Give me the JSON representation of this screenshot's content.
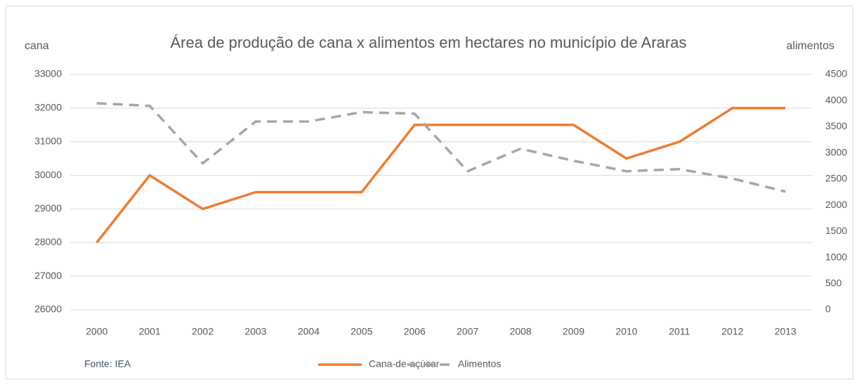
{
  "chart_data": {
    "type": "line",
    "title": "Área de produção de cana x alimentos em hectares no município de Araras",
    "ylabel": "cana",
    "y2label": "alimentos",
    "source": "Fonte: IEA",
    "categories": [
      "2000",
      "2001",
      "2002",
      "2003",
      "2004",
      "2005",
      "2006",
      "2007",
      "2008",
      "2009",
      "2010",
      "2011",
      "2012",
      "2013"
    ],
    "series": [
      {
        "name": "Cana-de-açúcar",
        "color": "#ed7d31",
        "dash": false,
        "axis": "y",
        "values": [
          28000,
          30000,
          29000,
          29500,
          29500,
          29500,
          31500,
          31500,
          31500,
          31500,
          30500,
          31000,
          32000,
          32000
        ]
      },
      {
        "name": "Alimentos",
        "color": "#a5a5a5",
        "dash": true,
        "axis": "y2",
        "values": [
          3950,
          3900,
          2800,
          3600,
          3600,
          3780,
          3750,
          2650,
          3080,
          2850,
          2650,
          2690,
          2510,
          2260
        ]
      }
    ],
    "ylim": [
      26000,
      33000
    ],
    "yticks": [
      26000,
      27000,
      28000,
      29000,
      30000,
      31000,
      32000,
      33000
    ],
    "y2lim": [
      0,
      4500
    ],
    "y2ticks": [
      0,
      500,
      1000,
      1500,
      2000,
      2500,
      3000,
      3500,
      4000,
      4500
    ],
    "grid": true,
    "legend": "bottom"
  }
}
